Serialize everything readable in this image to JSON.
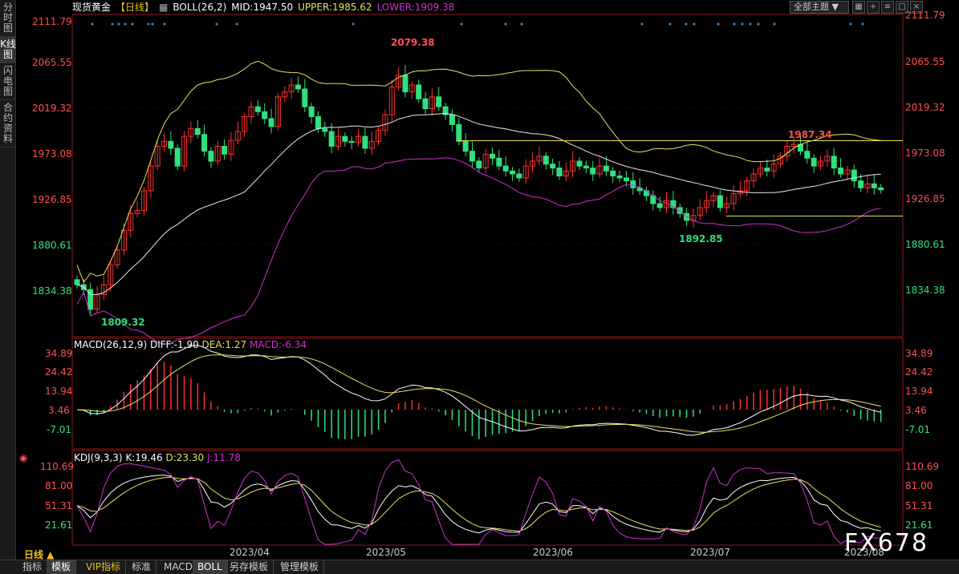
{
  "left_tabs": [
    "分时图",
    "K线图",
    "闪电图",
    "合约资料"
  ],
  "left_active": 1,
  "header": {
    "symbol": "现货黄金",
    "period": "【日线】",
    "indicator": "BOLL(26,2)",
    "mid": "MID:1947.50",
    "upper": "UPPER:1985.62",
    "lower": "LOWER:1909.38"
  },
  "toolbar": {
    "theme_label": "全部主题",
    "buttons": [
      "grid-icon",
      "plus-icon",
      "list-icon",
      "window-icon",
      "close-icon"
    ]
  },
  "colors": {
    "up": "#ff3030",
    "down": "#30e080",
    "mid": "#e8e8e8",
    "upper": "#e8e060",
    "lower": "#d030d0",
    "dif": "#ffffff",
    "dea": "#e8e060",
    "macd": "#d030d0",
    "k": "#ffffff",
    "d": "#e8e060",
    "j": "#d030d0"
  },
  "price_axis": [
    "2111.79",
    "2065.55",
    "2019.32",
    "1973.08",
    "1926.85",
    "1880.61",
    "1834.38"
  ],
  "price_annotations": {
    "high": "2079.38",
    "low1": "1809.32",
    "low2": "1892.85",
    "recent_high": "1987.34"
  },
  "macd_panel": {
    "label": "MACD(26,12,9)",
    "diff": "DIFF:-1.90",
    "dea": "DEA:1.27",
    "macd": "MACD:-6.34",
    "axis": [
      "34.89",
      "24.42",
      "13.94",
      "3.46",
      "-7.01"
    ]
  },
  "kdj_panel": {
    "label": "KDJ(9,3,3)",
    "k": "K:19.46",
    "d": "D:23.30",
    "j": "J:11.78",
    "axis": [
      "110.69",
      "81.00",
      "51.31",
      "21.61"
    ]
  },
  "x_axis": [
    "2023/04",
    "2023/05",
    "2023/06",
    "2023/07",
    "2023/08"
  ],
  "period_button": "日线 ▲",
  "bottom_tabs": [
    "指标",
    "模板",
    "VIP指标",
    "标准",
    "MACD",
    "BOLL",
    "另存模板",
    "管理模板"
  ],
  "bottom_active": [
    1,
    5
  ],
  "watermark": "FX678",
  "chart_data": {
    "type": "candlestick",
    "price_range": [
      1790,
      2120
    ],
    "resistance_line": 1985.62,
    "support_line": 1909.38,
    "closes": [
      1840,
      1835,
      1815,
      1830,
      1840,
      1860,
      1875,
      1895,
      1912,
      1915,
      1935,
      1960,
      1980,
      1985,
      1978,
      1960,
      1990,
      1998,
      1992,
      1975,
      1965,
      1980,
      1972,
      1986,
      1995,
      2010,
      2020,
      2015,
      2008,
      2000,
      2030,
      2035,
      2042,
      2038,
      2020,
      2010,
      1998,
      1995,
      1980,
      1990,
      1985,
      1984,
      1990,
      1978,
      1985,
      1996,
      2012,
      2040,
      2052,
      2035,
      2042,
      2028,
      2018,
      2030,
      2020,
      2012,
      2002,
      1985,
      1975,
      1965,
      1958,
      1972,
      1968,
      1960,
      1955,
      1952,
      1948,
      1960,
      1965,
      1970,
      1962,
      1958,
      1950,
      1955,
      1965,
      1960,
      1958,
      1952,
      1960,
      1955,
      1950,
      1948,
      1945,
      1938,
      1935,
      1930,
      1922,
      1918,
      1925,
      1918,
      1912,
      1905,
      1910,
      1918,
      1925,
      1930,
      1918,
      1922,
      1932,
      1935,
      1945,
      1952,
      1958,
      1955,
      1962,
      1970,
      1980,
      1982,
      1975,
      1968,
      1960,
      1965,
      1970,
      1958,
      1952,
      1956,
      1945,
      1938,
      1942,
      1938,
      1936
    ]
  }
}
